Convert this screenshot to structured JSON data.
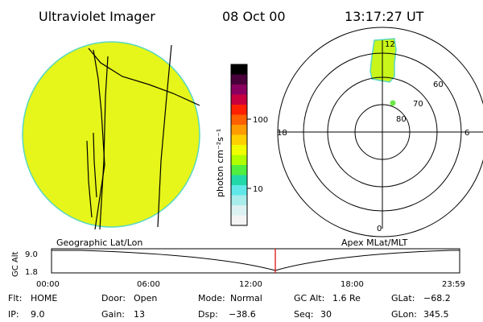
{
  "header": {
    "instrument": "Ultraviolet Imager",
    "date": "08 Oct 00",
    "time": "13:17:27 UT"
  },
  "colorbar": {
    "unit": "photon cm⁻²s⁻¹",
    "ticks": [
      "100",
      "10"
    ],
    "colors": [
      "#000000",
      "#4a003a",
      "#8a0060",
      "#c80040",
      "#ff2000",
      "#ff6000",
      "#ff9c00",
      "#ffd000",
      "#f0ff00",
      "#b0ff00",
      "#50ee40",
      "#20d8a8",
      "#60e8e8",
      "#a8ecec",
      "#dcf2f2",
      "#f4f4f4"
    ]
  },
  "geo_panel": {
    "label": "Geographic Lat/Lon",
    "disk_color": "#e6f51a"
  },
  "polar_panel": {
    "label": "Apex MLat/MLT",
    "mlt_labels": {
      "top": "12",
      "left": "18",
      "right": "6",
      "bottom": "0"
    },
    "mlat_labels": [
      "60",
      "70",
      "80"
    ],
    "blob_color": "#c8f51a"
  },
  "altitude_plot": {
    "ylabel": "GC Alt",
    "yticks": [
      "9.0",
      "1.8"
    ],
    "xticks": [
      "00:00",
      "06:00",
      "12:00",
      "18:00",
      "23:59"
    ],
    "marker_color": "#dd0000"
  },
  "footer": {
    "flt": {
      "label": "Flt:",
      "value": "HOME"
    },
    "ip": {
      "label": "IP:",
      "value": "9.0"
    },
    "door": {
      "label": "Door:",
      "value": "Open"
    },
    "gain": {
      "label": "Gain:",
      "value": "13"
    },
    "mode": {
      "label": "Mode:",
      "value": "Normal"
    },
    "dsp": {
      "label": "Dsp:",
      "value": "−38.6"
    },
    "gcalt": {
      "label": "GC Alt:",
      "value": "1.6 Re"
    },
    "seq": {
      "label": "Seq:",
      "value": "30"
    },
    "glat": {
      "label": "GLat:",
      "value": "−68.2"
    },
    "glon": {
      "label": "GLon:",
      "value": "345.5"
    }
  }
}
